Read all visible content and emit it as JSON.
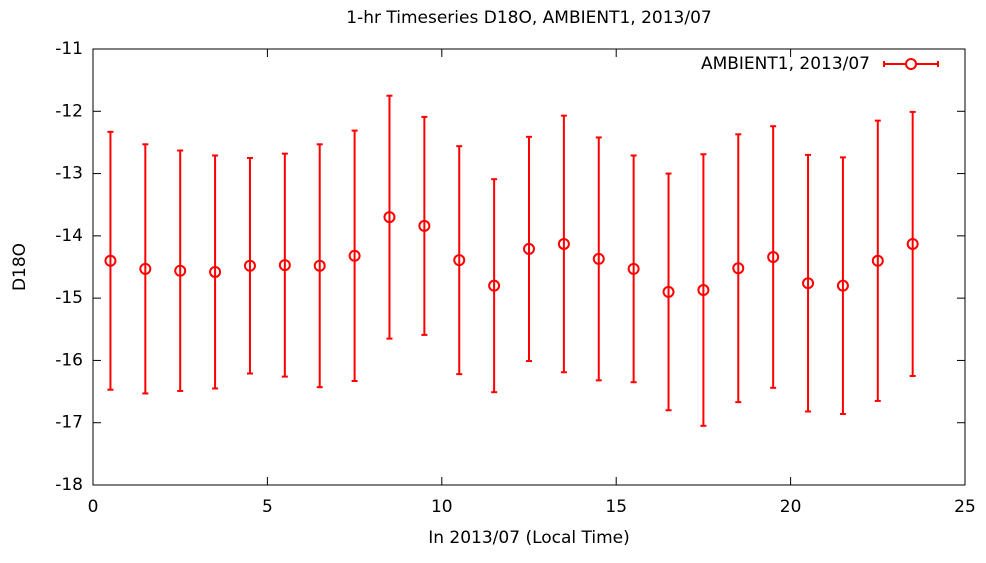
{
  "chart_data": {
    "type": "errorbar",
    "title": "1-hr Timeseries D18O, AMBIENT1, 2013/07",
    "x_label": "In 2013/07 (Local Time)",
    "y_label": "D18O",
    "x": [
      0.5,
      1.5,
      2.5,
      3.5,
      4.5,
      5.5,
      6.5,
      7.5,
      8.5,
      9.5,
      10.5,
      11.5,
      12.5,
      13.5,
      14.5,
      15.5,
      16.5,
      17.5,
      18.5,
      19.5,
      20.5,
      21.5,
      22.5,
      23.5
    ],
    "series": [
      {
        "name": "AMBIENT1, 2013/07",
        "color": "#ff0000",
        "values": [
          -14.4,
          -14.53,
          -14.56,
          -14.58,
          -14.48,
          -14.47,
          -14.48,
          -14.32,
          -13.7,
          -13.84,
          -14.39,
          -14.8,
          -14.21,
          -14.13,
          -14.37,
          -14.53,
          -14.9,
          -14.87,
          -14.52,
          -14.34,
          -14.76,
          -14.8,
          -14.4,
          -14.13
        ],
        "errors": [
          2.07,
          2.0,
          1.93,
          1.87,
          1.73,
          1.79,
          1.95,
          2.01,
          1.95,
          1.75,
          1.83,
          1.71,
          1.8,
          2.06,
          1.95,
          1.82,
          1.9,
          2.18,
          2.15,
          2.1,
          2.06,
          2.06,
          2.25,
          2.12
        ]
      }
    ],
    "xlim": [
      0,
      25
    ],
    "xticks": [
      0,
      5,
      10,
      15,
      20,
      25
    ],
    "ylim": [
      -18,
      -11
    ],
    "yticks": [
      -18,
      -17,
      -16,
      -15,
      -14,
      -13,
      -12,
      -11
    ],
    "legend": "top-right"
  }
}
